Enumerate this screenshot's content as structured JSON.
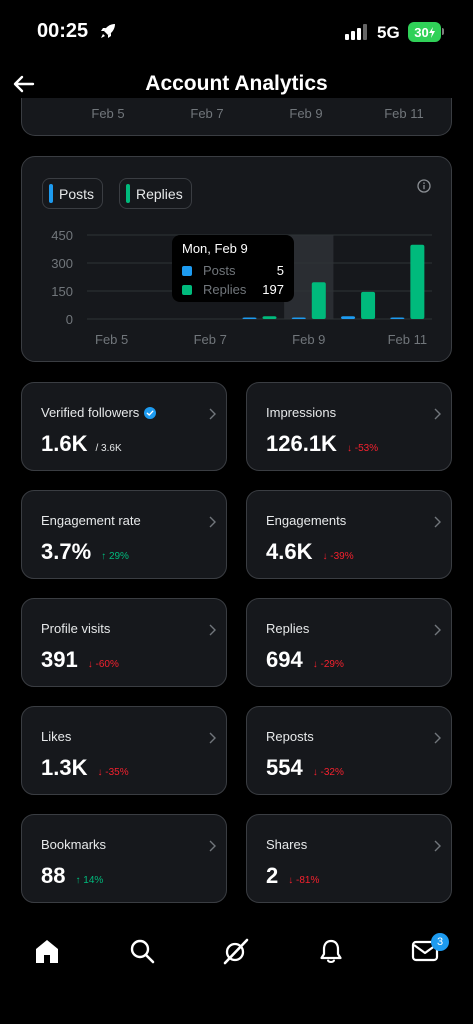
{
  "status_bar": {
    "time": "00:25",
    "network": "5G",
    "battery": "30"
  },
  "header": {
    "title": "Account Analytics"
  },
  "prev_chart": {
    "x_labels": [
      "Feb 5",
      "Feb 7",
      "Feb 9",
      "Feb 11"
    ]
  },
  "legend": {
    "posts_label": "Posts",
    "replies_label": "Replies"
  },
  "colors": {
    "posts": "#1d9bf0",
    "replies": "#00ba7c",
    "positive": "#00ba7c",
    "negative": "#f4212e"
  },
  "tooltip": {
    "title": "Mon, Feb 9",
    "rows": [
      {
        "label": "Posts",
        "value": "5"
      },
      {
        "label": "Replies",
        "value": "197"
      }
    ]
  },
  "chart_data": {
    "type": "bar",
    "categories": [
      "Feb 5",
      "Feb 6",
      "Feb 7",
      "Feb 8",
      "Feb 9",
      "Feb 10",
      "Feb 11"
    ],
    "series": [
      {
        "name": "Posts",
        "values": [
          0,
          0,
          0,
          3,
          5,
          15,
          8
        ]
      },
      {
        "name": "Replies",
        "values": [
          0,
          0,
          0,
          15,
          197,
          145,
          398
        ]
      }
    ],
    "y_ticks": [
      "0",
      "150",
      "300",
      "450"
    ],
    "x_tick_labels": [
      "Feb 5",
      "Feb 7",
      "Feb 9",
      "Feb 11"
    ],
    "ylim": [
      0,
      450
    ],
    "highlighted_category": "Feb 9",
    "grid": true
  },
  "stats": [
    {
      "label": "Verified followers",
      "value": "1.6K",
      "sub": "/ 3.6K",
      "change": "",
      "direction": "",
      "verified": true
    },
    {
      "label": "Impressions",
      "value": "126.1K",
      "sub": "",
      "change": "-53%",
      "direction": "down"
    },
    {
      "label": "Engagement rate",
      "value": "3.7%",
      "sub": "",
      "change": "29%",
      "direction": "up"
    },
    {
      "label": "Engagements",
      "value": "4.6K",
      "sub": "",
      "change": "-39%",
      "direction": "down"
    },
    {
      "label": "Profile visits",
      "value": "391",
      "sub": "",
      "change": "-60%",
      "direction": "down"
    },
    {
      "label": "Replies",
      "value": "694",
      "sub": "",
      "change": "-29%",
      "direction": "down"
    },
    {
      "label": "Likes",
      "value": "1.3K",
      "sub": "",
      "change": "-35%",
      "direction": "down"
    },
    {
      "label": "Reposts",
      "value": "554",
      "sub": "",
      "change": "-32%",
      "direction": "down"
    },
    {
      "label": "Bookmarks",
      "value": "88",
      "sub": "",
      "change": "14%",
      "direction": "up"
    },
    {
      "label": "Shares",
      "value": "2",
      "sub": "",
      "change": "-81%",
      "direction": "down"
    }
  ],
  "bottom_nav": {
    "items": [
      "home-icon",
      "search-icon",
      "grok-icon",
      "notifications-icon",
      "messages-icon"
    ],
    "messages_badge": "3"
  }
}
